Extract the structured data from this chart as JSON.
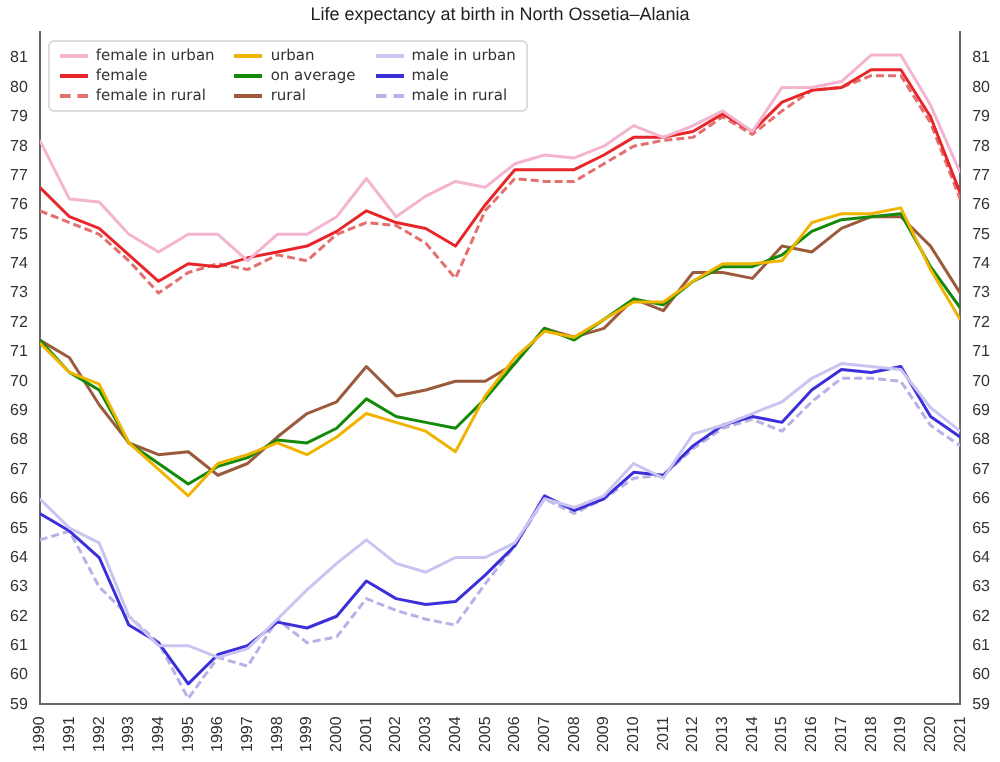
{
  "chart_data": {
    "type": "line",
    "title": "Life expectancy at birth in North Ossetia–Alania",
    "x": [
      1990,
      1991,
      1992,
      1993,
      1994,
      1995,
      1996,
      1997,
      1998,
      1999,
      2000,
      2001,
      2002,
      2003,
      2004,
      2005,
      2006,
      2007,
      2008,
      2009,
      2010,
      2011,
      2012,
      2013,
      2014,
      2015,
      2016,
      2017,
      2018,
      2019,
      2020,
      2021
    ],
    "xlim": [
      1990,
      2021
    ],
    "xticks": [
      1990,
      1991,
      1992,
      1993,
      1994,
      1995,
      1996,
      1997,
      1998,
      1999,
      2000,
      2001,
      2002,
      2003,
      2004,
      2005,
      2006,
      2007,
      2008,
      2009,
      2010,
      2011,
      2012,
      2013,
      2014,
      2015,
      2016,
      2017,
      2018,
      2019,
      2020,
      2021
    ],
    "ylim": [
      59,
      81.9
    ],
    "yticks": [
      59,
      60,
      61,
      62,
      63,
      64,
      65,
      66,
      67,
      68,
      69,
      70,
      71,
      72,
      73,
      74,
      75,
      76,
      77,
      78,
      79,
      80,
      81
    ],
    "y2lim": [
      59,
      81.9
    ],
    "y2ticks": [
      59,
      60,
      61,
      62,
      63,
      64,
      65,
      66,
      67,
      68,
      69,
      70,
      71,
      72,
      73,
      74,
      75,
      76,
      77,
      78,
      79,
      80,
      81
    ],
    "grid": false,
    "legend": "top left",
    "marker": "none",
    "series": [
      {
        "name": "female in urban",
        "color": "#f4b3cf",
        "values": [
          78.2,
          76.2,
          76.1,
          75.0,
          74.4,
          75.0,
          75.0,
          74.1,
          75.0,
          75.0,
          75.6,
          76.9,
          75.6,
          76.3,
          76.8,
          76.6,
          77.4,
          77.7,
          77.6,
          78.0,
          78.7,
          78.3,
          78.7,
          79.2,
          78.5,
          80.0,
          80.0,
          80.2,
          81.1,
          81.1,
          79.4,
          77.1
        ]
      },
      {
        "name": "urban",
        "color": "#f0b400",
        "values": [
          71.3,
          70.3,
          69.9,
          67.9,
          67.0,
          66.1,
          67.2,
          67.5,
          67.9,
          67.5,
          68.1,
          68.9,
          68.6,
          68.3,
          67.6,
          69.5,
          70.8,
          71.7,
          71.5,
          72.1,
          72.7,
          72.7,
          73.4,
          74.0,
          74.0,
          74.1,
          75.4,
          75.7,
          75.7,
          75.9,
          73.8,
          72.1
        ]
      },
      {
        "name": "male in urban",
        "color": "#c9c4f2",
        "values": [
          66.0,
          65.0,
          64.5,
          62.0,
          61.0,
          61.0,
          60.6,
          60.9,
          61.9,
          62.9,
          63.8,
          64.6,
          63.8,
          63.5,
          64.0,
          64.0,
          64.5,
          66.0,
          65.7,
          66.1,
          67.2,
          66.7,
          68.2,
          68.5,
          68.9,
          69.3,
          70.1,
          70.6,
          70.5,
          70.4,
          69.1,
          68.3
        ]
      },
      {
        "name": "female",
        "color": "#e8262a",
        "values": [
          76.6,
          75.6,
          75.2,
          74.3,
          73.4,
          74.0,
          73.9,
          74.2,
          74.4,
          74.6,
          75.1,
          75.8,
          75.4,
          75.2,
          74.6,
          76.0,
          77.2,
          77.2,
          77.2,
          77.7,
          78.3,
          78.3,
          78.5,
          79.1,
          78.5,
          79.5,
          79.9,
          80.0,
          80.6,
          80.6,
          79.0,
          76.4
        ]
      },
      {
        "name": "on average",
        "color": "#138a07",
        "values": [
          71.4,
          70.3,
          69.7,
          67.9,
          67.2,
          66.5,
          67.1,
          67.4,
          68.0,
          67.9,
          68.4,
          69.4,
          68.8,
          68.6,
          68.4,
          69.4,
          70.6,
          71.8,
          71.4,
          72.1,
          72.8,
          72.6,
          73.4,
          73.9,
          73.9,
          74.3,
          75.1,
          75.5,
          75.6,
          75.7,
          73.9,
          72.5
        ]
      },
      {
        "name": "male",
        "color": "#3a2fd8",
        "values": [
          65.5,
          64.9,
          64.0,
          61.7,
          61.1,
          59.7,
          60.7,
          61.0,
          61.8,
          61.6,
          62.0,
          63.2,
          62.6,
          62.4,
          62.5,
          63.4,
          64.4,
          66.1,
          65.6,
          66.0,
          66.9,
          66.8,
          67.8,
          68.5,
          68.8,
          68.6,
          69.7,
          70.4,
          70.3,
          70.5,
          68.8,
          68.1
        ]
      },
      {
        "name": "female in rural",
        "color": "#e36f6f",
        "line_style": "dashed",
        "values": [
          75.8,
          75.4,
          75.0,
          74.1,
          73.0,
          73.7,
          74.0,
          73.8,
          74.3,
          74.1,
          75.0,
          75.4,
          75.3,
          74.7,
          73.5,
          75.8,
          76.9,
          76.8,
          76.8,
          77.4,
          78.0,
          78.2,
          78.3,
          79.0,
          78.4,
          79.2,
          79.9,
          80.0,
          80.4,
          80.4,
          78.8,
          76.2
        ]
      },
      {
        "name": "rural",
        "color": "#9c5a3c",
        "values": [
          71.4,
          70.8,
          69.2,
          67.9,
          67.5,
          67.6,
          66.8,
          67.2,
          68.1,
          68.9,
          69.3,
          70.5,
          69.5,
          69.7,
          70.0,
          70.0,
          70.6,
          71.8,
          71.5,
          71.8,
          72.8,
          72.4,
          73.7,
          73.7,
          73.5,
          74.6,
          74.4,
          75.2,
          75.6,
          75.6,
          74.6,
          73.0
        ]
      },
      {
        "name": "male in rural",
        "color": "#b9b0e6",
        "line_style": "dashed",
        "values": [
          64.6,
          64.9,
          63.0,
          62.0,
          61.1,
          59.2,
          60.6,
          60.3,
          61.9,
          61.1,
          61.3,
          62.6,
          62.2,
          61.9,
          61.7,
          63.1,
          64.4,
          66.0,
          65.5,
          66.0,
          66.7,
          66.8,
          67.7,
          68.4,
          68.7,
          68.3,
          69.3,
          70.1,
          70.1,
          70.0,
          68.5,
          67.8
        ]
      }
    ]
  }
}
